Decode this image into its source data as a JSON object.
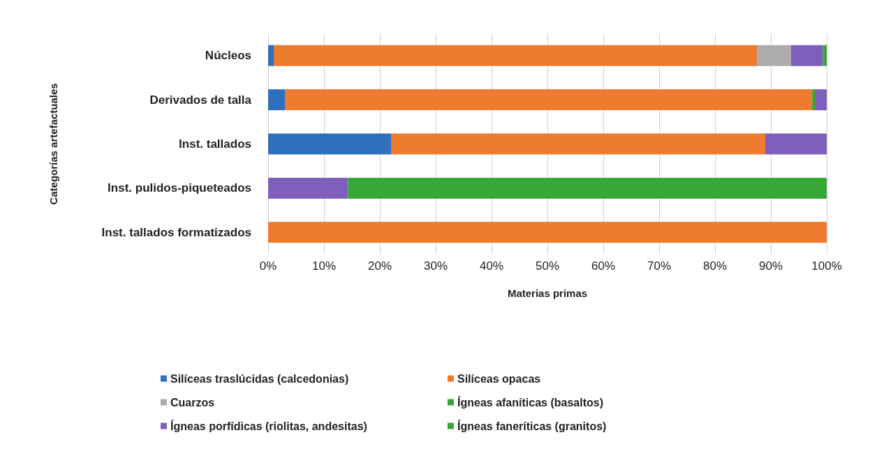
{
  "chart_data": {
    "type": "bar",
    "orientation": "horizontal",
    "stacked": true,
    "xlabel": "Materias primas",
    "ylabel": "Categorías artefactuales",
    "categories": [
      "Núcleos",
      "Derivados de talla",
      "Inst. tallados",
      "Inst. pulidos-piqueteados",
      "Inst. tallados formatizados"
    ],
    "series": [
      {
        "name": "Silíceas traslúcidas (calcedonias)",
        "color": "#2e6fc0",
        "values": [
          1,
          3,
          22,
          0,
          0
        ]
      },
      {
        "name": "Silíceas opacas",
        "color": "#ee7b30",
        "values": [
          86.6,
          94.4,
          67,
          0,
          100
        ]
      },
      {
        "name": "Cuarzos",
        "color": "#acacac",
        "values": [
          6,
          0,
          0,
          0,
          0
        ]
      },
      {
        "name": "Ígneas afaníticas (basaltos)",
        "color": "#3ca33a",
        "values": [
          0,
          0.6,
          0,
          0,
          0
        ]
      },
      {
        "name": "Ígneas porfídicas (riolitas, andesitas)",
        "color": "#7e5fbb",
        "values": [
          5.7,
          2,
          11,
          14.3,
          0
        ]
      },
      {
        "name": "Ígneas faneríticas (granitos)",
        "color": "#36a838",
        "values": [
          0.7,
          0,
          0,
          85.7,
          0
        ]
      }
    ],
    "xlim": [
      0,
      100
    ],
    "xticks": [
      {
        "value": 0,
        "label": "0%"
      },
      {
        "value": 10,
        "label": "10%"
      },
      {
        "value": 20,
        "label": "20%"
      },
      {
        "value": 30,
        "label": "30%"
      },
      {
        "value": 40,
        "label": "40%"
      },
      {
        "value": 50,
        "label": "50%"
      },
      {
        "value": 60,
        "label": "60%"
      },
      {
        "value": 70,
        "label": "70%"
      },
      {
        "value": 80,
        "label": "80%"
      },
      {
        "value": 90,
        "label": "90%"
      },
      {
        "value": 100,
        "label": "100%"
      }
    ],
    "grid": "x",
    "legend": "bottom"
  }
}
